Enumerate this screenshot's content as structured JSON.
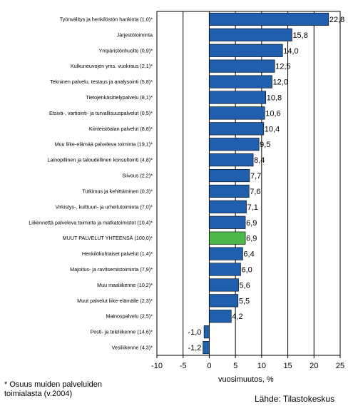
{
  "chart_data": {
    "type": "bar",
    "orientation": "horizontal",
    "categories": [
      "Työnvälitys ja henkilöstön hankinta (1,0)*",
      "Järjestötoiminta",
      "Ympäristönhuolto (0,9)*",
      "Kulkuneuvojen yms. vuokraus (2,1)*",
      "Tekninen palvelu, testaus ja analysointi (5,8)*",
      "Tietojenkäsittelypalvelu (8,1)*",
      "Etsivä-, vartiointi- ja turvallisuuspalvelut (0,5)*",
      "Kiinteistöalan palvelut (8,8)*",
      "Muu liike-elämää palveleva toiminta (19,1)*",
      "Lainopillinen ja taloudellinen konsultointi (4,8)*",
      "Siivous (2,2)*",
      "Tutkimus ja kehittäminen (0,3)*",
      "Virkistys-, kulttuuri- ja urheilutoiminta (7,0)*",
      "Liikennettä palveleva toiminta ja matkatoimistot (10,4)*",
      "MUUT PALVELUT YHTEENSÄ (100,0)*",
      "Henkilökohtaiset palvelut (1,4)*",
      "Majoitus- ja ravitsemistoiminta (7,9)*",
      "Muu maaliikenne (10,2)*",
      "Muut palvelut liike-elämälle (2,3)*",
      "Mainospalvelu (2,5)*",
      "Posti- ja teleliikenne (14,6)*",
      "Vesiliikenne (4,3)*"
    ],
    "values": [
      22.8,
      15.8,
      14.0,
      12.5,
      12.0,
      10.8,
      10.6,
      10.4,
      9.5,
      8.4,
      7.7,
      7.6,
      7.1,
      6.9,
      6.9,
      6.4,
      6.0,
      5.6,
      5.5,
      4.2,
      -1.0,
      -1.2
    ],
    "value_labels": [
      "22,8",
      "15,8",
      "14,0",
      "12,5",
      "12,0",
      "10,8",
      "10,6",
      "10,4",
      "9,5",
      "8,4",
      "7,7",
      "7,6",
      "7,1",
      "6,9",
      "6,9",
      "6,4",
      "6,0",
      "5,6",
      "5,5",
      "4,2",
      "-1,0",
      "-1,2"
    ],
    "highlight_index": 14,
    "xlim": [
      -10,
      25
    ],
    "xticks": [
      -10,
      -5,
      0,
      5,
      10,
      15,
      20,
      25
    ],
    "xlabel": "vuosimuutos, %",
    "grid": true,
    "colors": {
      "bar": "#1f5fae",
      "highlight": "#4cb84a",
      "grid": "#000000"
    }
  },
  "footnote": "* Osuus muiden palveluiden toimialasta (v.2004)",
  "source": "Lähde: Tilastokeskus"
}
